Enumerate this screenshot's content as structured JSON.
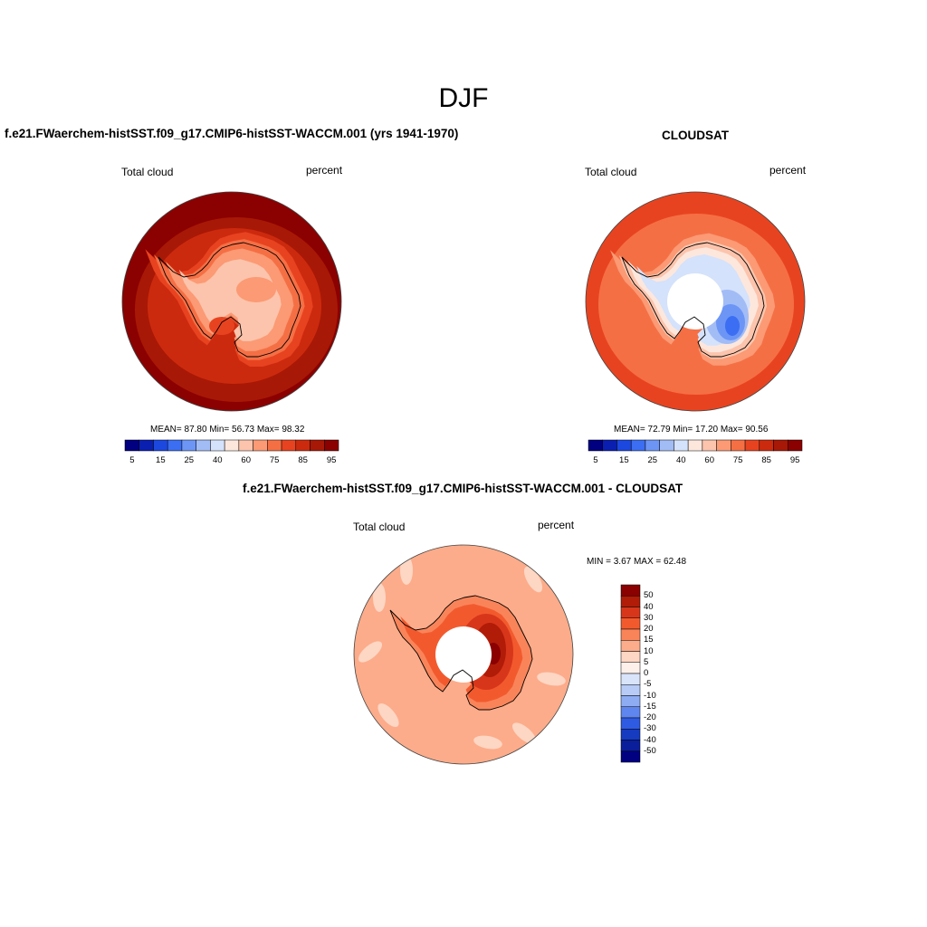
{
  "main_title": "DJF",
  "panels": [
    {
      "title": "f.e21.FWaerchem-histSST.f09_g17.CMIP6-histSST-WACCM.001 (yrs 1941-1970)",
      "left_label": "Total cloud",
      "right_label": "percent",
      "stats": "MEAN=  87.80  Min=  56.73  Max=  98.32",
      "colorbar_ticks": [
        "5",
        "15",
        "25",
        "40",
        "60",
        "75",
        "85",
        "95"
      ]
    },
    {
      "title": "CLOUDSAT",
      "left_label": "Total cloud",
      "right_label": "percent",
      "stats": "MEAN=  72.79  Min=  17.20  Max=  90.56",
      "colorbar_ticks": [
        "5",
        "15",
        "25",
        "40",
        "60",
        "75",
        "85",
        "95"
      ]
    },
    {
      "title": "f.e21.FWaerchem-histSST.f09_g17.CMIP6-histSST-WACCM.001 - CLOUDSAT",
      "left_label": "Total cloud",
      "right_label": "percent",
      "stats": "MIN =   3.67 MAX =  62.48",
      "colorbar_ticks": [
        "50",
        "40",
        "30",
        "20",
        "15",
        "10",
        "5",
        "0",
        "-5",
        "-10",
        "-15",
        "-20",
        "-30",
        "-40",
        "-50"
      ]
    }
  ],
  "colors": {
    "seq": [
      "#000080",
      "#0a1fb0",
      "#1c48e0",
      "#3b6ef2",
      "#6c95f5",
      "#a2bcf6",
      "#d4e2fb",
      "#fde7dd",
      "#fcc4ac",
      "#fb9a74",
      "#f56f45",
      "#e84320",
      "#cc2a0e",
      "#a81806",
      "#8b0000"
    ],
    "diff": [
      "#8b0000",
      "#b01c08",
      "#d8361a",
      "#f25a2e",
      "#fa845a",
      "#fcac8a",
      "#fed6c4",
      "#fdf0ea",
      "#d9e4fb",
      "#b7cbf6",
      "#8eacf2",
      "#5f85ee",
      "#2f5ae2",
      "#163bc0",
      "#0a1d9a",
      "#000080"
    ]
  }
}
